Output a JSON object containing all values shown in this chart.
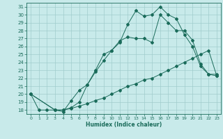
{
  "xlabel": "Humidex (Indice chaleur)",
  "bg_color": "#c8eaea",
  "line_color": "#1a6b5a",
  "grid_color": "#a0cccc",
  "xlim": [
    -0.5,
    23.5
  ],
  "ylim": [
    17.5,
    31.5
  ],
  "xticks": [
    0,
    1,
    2,
    3,
    4,
    5,
    6,
    7,
    8,
    9,
    10,
    11,
    12,
    13,
    14,
    15,
    16,
    17,
    18,
    19,
    20,
    21,
    22,
    23
  ],
  "yticks": [
    18,
    19,
    20,
    21,
    22,
    23,
    24,
    25,
    26,
    27,
    28,
    29,
    30,
    31
  ],
  "line1_x": [
    0,
    1,
    2,
    3,
    4,
    5,
    6,
    7,
    8,
    9,
    10,
    11,
    12,
    13,
    14,
    15,
    16,
    17,
    18,
    19,
    20,
    21,
    22,
    23
  ],
  "line1_y": [
    20,
    18,
    18,
    18,
    17.8,
    19.2,
    20.5,
    21.2,
    22.8,
    24.2,
    25.5,
    26.5,
    28.8,
    30.5,
    29.8,
    30,
    31,
    30,
    29.5,
    27.5,
    26,
    23.5,
    22.5,
    22.5
  ],
  "line2_x": [
    0,
    3,
    4,
    5,
    6,
    7,
    8,
    9,
    10,
    11,
    12,
    13,
    14,
    15,
    16,
    17,
    18,
    19,
    20,
    21,
    22,
    23
  ],
  "line2_y": [
    20,
    18,
    18,
    18.3,
    19,
    21.2,
    23,
    25,
    25.5,
    26.7,
    27.2,
    27,
    27,
    26.5,
    30,
    29,
    28,
    28,
    26.8,
    23.8,
    22.5,
    22.3
  ],
  "line3_x": [
    0,
    3,
    4,
    5,
    6,
    7,
    8,
    9,
    10,
    11,
    12,
    13,
    14,
    15,
    16,
    17,
    18,
    19,
    20,
    21,
    22,
    23
  ],
  "line3_y": [
    20,
    18,
    18,
    18.2,
    18.5,
    18.8,
    19.2,
    19.5,
    20,
    20.5,
    21,
    21.3,
    21.8,
    22,
    22.5,
    23,
    23.5,
    24,
    24.5,
    25,
    25.5,
    22.3
  ]
}
